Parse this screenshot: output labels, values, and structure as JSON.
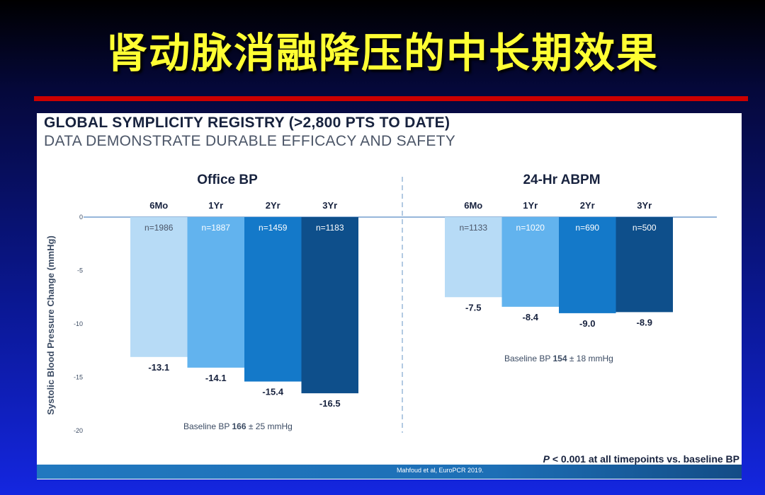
{
  "slide_title": "肾动脉消融降压的中长期效果",
  "panel": {
    "title": "GLOBAL SYMPLICITY REGISTRY (>2,800 PTS TO DATE)",
    "subtitle": "DATA DEMONSTRATE DURABLE EFFICACY AND SAFETY"
  },
  "footer": {
    "citation": "Mahfoud et al, EuroPCR 2019."
  },
  "colors": {
    "bar_6mo": "#b7dbf6",
    "bar_1yr": "#62b3ee",
    "bar_2yr": "#1479c9",
    "bar_3yr": "#0e4f8b",
    "axis": "#2c6eb5",
    "title_yellow": "#ffff33",
    "rule_red": "#cc0000"
  },
  "chart_data": {
    "type": "bar",
    "ylabel": "Systolic Blood Pressure Change (mmHg)",
    "ylim": [
      -20,
      0
    ],
    "yticks": [
      0,
      -5,
      -10,
      -15,
      -20
    ],
    "categories": [
      "6Mo",
      "1Yr",
      "2Yr",
      "3Yr"
    ],
    "panels": [
      {
        "title": "Office BP",
        "values": [
          -13.1,
          -14.1,
          -15.4,
          -16.5
        ],
        "value_labels": [
          "-13.1",
          "-14.1",
          "-15.4",
          "-16.5"
        ],
        "n_labels": [
          "n=1986",
          "n=1887",
          "n=1459",
          "n=1183"
        ],
        "baseline_prefix": "Baseline BP ",
        "baseline_value": "166",
        "baseline_suffix": " ± 25 mmHg"
      },
      {
        "title": "24-Hr ABPM",
        "values": [
          -7.5,
          -8.4,
          -9.0,
          -8.9
        ],
        "value_labels": [
          "-7.5",
          "-8.4",
          "-9.0",
          "-8.9"
        ],
        "n_labels": [
          "n=1133",
          "n=1020",
          "n=690",
          "n=500"
        ],
        "baseline_prefix": "Baseline BP ",
        "baseline_value": "154",
        "baseline_suffix": " ± 18 mmHg"
      }
    ],
    "pvalue": {
      "symbol": "P",
      "text": " < 0.001 at all timepoints vs. baseline BP"
    }
  }
}
